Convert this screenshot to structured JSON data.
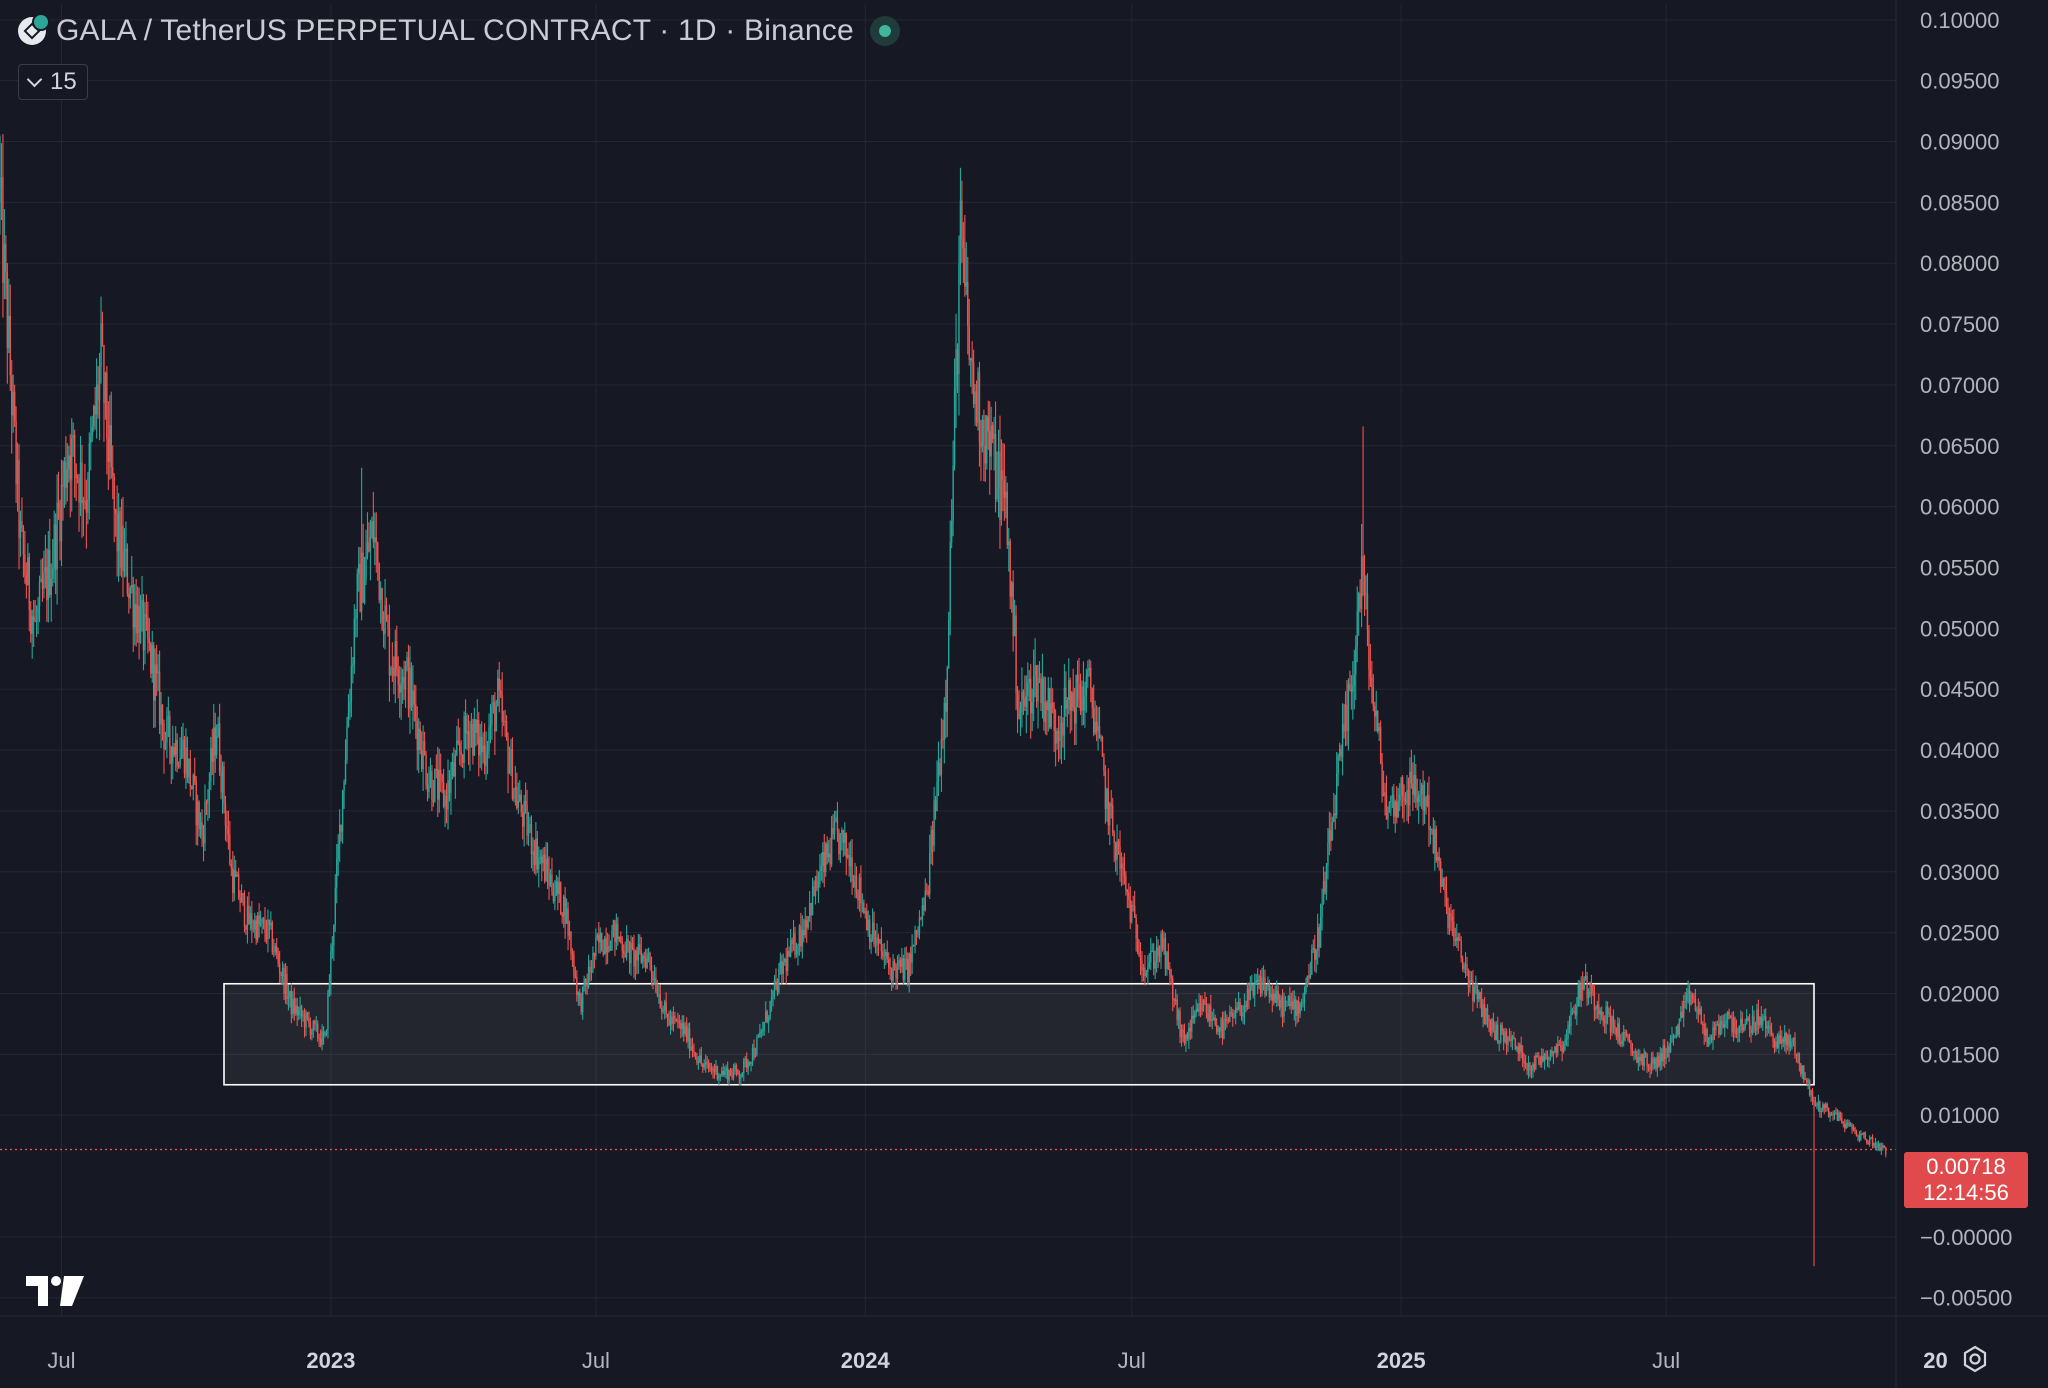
{
  "header": {
    "title": "GALA / TetherUS PERPETUAL CONTRACT · 1D · Binance",
    "indicator_count": "15"
  },
  "price_tag": {
    "price": "0.00718",
    "countdown": "12:14:56"
  },
  "colors": {
    "up": "#26a69a",
    "down": "#ef5350",
    "background": "#161823",
    "grid": "#242733",
    "zone": "#ffffff",
    "last_price": "#ef5350"
  },
  "icons": {
    "symbol": "gala-token-icon",
    "logo": "tradingview-logo-icon",
    "settings": "settings-gear-icon",
    "collapse": "chevron-down-icon"
  },
  "chart_data": {
    "type": "candlestick",
    "title": "GALA / TetherUS PERPETUAL CONTRACT · 1D · Binance",
    "timeframe": "1D",
    "exchange": "Binance",
    "xlim": [
      "2022-05-20",
      "2025-12-05"
    ],
    "ylim": [
      -0.0065,
      0.1013
    ],
    "y_ticks": [
      "0.10000",
      "0.09500",
      "0.09000",
      "0.08500",
      "0.08000",
      "0.07500",
      "0.07000",
      "0.06500",
      "0.06000",
      "0.05500",
      "0.05000",
      "0.04500",
      "0.04000",
      "0.03500",
      "0.03000",
      "0.02500",
      "0.02000",
      "0.01500",
      "0.01000",
      "−0.00000",
      "−0.00500"
    ],
    "x_ticks": [
      {
        "label": "Jul",
        "date": "2022-07-01",
        "bold": false
      },
      {
        "label": "2023",
        "date": "2023-01-01",
        "bold": true
      },
      {
        "label": "Jul",
        "date": "2023-07-01",
        "bold": false
      },
      {
        "label": "2024",
        "date": "2024-01-01",
        "bold": true
      },
      {
        "label": "Jul",
        "date": "2024-07-01",
        "bold": false
      },
      {
        "label": "2025",
        "date": "2025-01-01",
        "bold": true
      },
      {
        "label": "Jul",
        "date": "2025-07-01",
        "bold": false
      },
      {
        "label": "20",
        "date": "2026-01-01",
        "bold": true
      }
    ],
    "last_price": 0.00718,
    "support_zone": {
      "from": "2022-10-20",
      "to": "2025-10-10",
      "low": 0.0125,
      "high": 0.0208
    },
    "price_path": [
      [
        "2022-05-20",
        0.085
      ],
      [
        "2022-06-03",
        0.057
      ],
      [
        "2022-06-13",
        0.05
      ],
      [
        "2022-06-25",
        0.056
      ],
      [
        "2022-07-06",
        0.065
      ],
      [
        "2022-07-18",
        0.061
      ],
      [
        "2022-07-28",
        0.072
      ],
      [
        "2022-08-07",
        0.058
      ],
      [
        "2022-08-20",
        0.052
      ],
      [
        "2022-09-01",
        0.047
      ],
      [
        "2022-09-10",
        0.041
      ],
      [
        "2022-09-23",
        0.04
      ],
      [
        "2022-10-05",
        0.033
      ],
      [
        "2022-10-15",
        0.042
      ],
      [
        "2022-10-25",
        0.03
      ],
      [
        "2022-11-05",
        0.026
      ],
      [
        "2022-11-20",
        0.025
      ],
      [
        "2022-12-05",
        0.019
      ],
      [
        "2022-12-28",
        0.016
      ],
      [
        "2023-01-08",
        0.035
      ],
      [
        "2023-01-18",
        0.052
      ],
      [
        "2023-01-30",
        0.058
      ],
      [
        "2023-02-10",
        0.048
      ],
      [
        "2023-02-22",
        0.046
      ],
      [
        "2023-03-08",
        0.038
      ],
      [
        "2023-03-20",
        0.036
      ],
      [
        "2023-04-05",
        0.042
      ],
      [
        "2023-04-15",
        0.04
      ],
      [
        "2023-04-25",
        0.044
      ],
      [
        "2023-05-08",
        0.036
      ],
      [
        "2023-05-20",
        0.032
      ],
      [
        "2023-06-01",
        0.029
      ],
      [
        "2023-06-10",
        0.027
      ],
      [
        "2023-06-20",
        0.019
      ],
      [
        "2023-07-02",
        0.024
      ],
      [
        "2023-07-14",
        0.025
      ],
      [
        "2023-07-26",
        0.023
      ],
      [
        "2023-08-06",
        0.023
      ],
      [
        "2023-08-18",
        0.018
      ],
      [
        "2023-08-30",
        0.017
      ],
      [
        "2023-09-12",
        0.014
      ],
      [
        "2023-09-25",
        0.0135
      ],
      [
        "2023-10-08",
        0.0135
      ],
      [
        "2023-10-20",
        0.016
      ],
      [
        "2023-11-05",
        0.022
      ],
      [
        "2023-11-18",
        0.025
      ],
      [
        "2023-12-02",
        0.03
      ],
      [
        "2023-12-12",
        0.033
      ],
      [
        "2023-12-22",
        0.031
      ],
      [
        "2024-01-05",
        0.025
      ],
      [
        "2024-01-18",
        0.022
      ],
      [
        "2024-01-30",
        0.022
      ],
      [
        "2024-02-12",
        0.028
      ],
      [
        "2024-02-25",
        0.045
      ],
      [
        "2024-03-06",
        0.082
      ],
      [
        "2024-03-14",
        0.07
      ],
      [
        "2024-03-26",
        0.065
      ],
      [
        "2024-04-06",
        0.06
      ],
      [
        "2024-04-15",
        0.043
      ],
      [
        "2024-04-27",
        0.046
      ],
      [
        "2024-05-10",
        0.042
      ],
      [
        "2024-05-20",
        0.044
      ],
      [
        "2024-06-03",
        0.045
      ],
      [
        "2024-06-15",
        0.035
      ],
      [
        "2024-06-28",
        0.028
      ],
      [
        "2024-07-10",
        0.022
      ],
      [
        "2024-07-22",
        0.024
      ],
      [
        "2024-08-05",
        0.016
      ],
      [
        "2024-08-18",
        0.019
      ],
      [
        "2024-09-01",
        0.017
      ],
      [
        "2024-09-15",
        0.019
      ],
      [
        "2024-09-28",
        0.021
      ],
      [
        "2024-10-10",
        0.019
      ],
      [
        "2024-10-24",
        0.019
      ],
      [
        "2024-11-06",
        0.025
      ],
      [
        "2024-11-18",
        0.037
      ],
      [
        "2024-11-28",
        0.045
      ],
      [
        "2024-12-05",
        0.055
      ],
      [
        "2024-12-12",
        0.045
      ],
      [
        "2024-12-22",
        0.035
      ],
      [
        "2025-01-05",
        0.037
      ],
      [
        "2025-01-18",
        0.036
      ],
      [
        "2025-01-30",
        0.028
      ],
      [
        "2025-02-08",
        0.024
      ],
      [
        "2025-02-20",
        0.02
      ],
      [
        "2025-03-05",
        0.017
      ],
      [
        "2025-03-18",
        0.016
      ],
      [
        "2025-03-30",
        0.014
      ],
      [
        "2025-04-10",
        0.015
      ],
      [
        "2025-04-22",
        0.016
      ],
      [
        "2025-05-05",
        0.021
      ],
      [
        "2025-05-16",
        0.019
      ],
      [
        "2025-05-28",
        0.017
      ],
      [
        "2025-06-10",
        0.015
      ],
      [
        "2025-06-22",
        0.014
      ],
      [
        "2025-07-05",
        0.016
      ],
      [
        "2025-07-18",
        0.02
      ],
      [
        "2025-07-30",
        0.016
      ],
      [
        "2025-08-10",
        0.018
      ],
      [
        "2025-08-22",
        0.017
      ],
      [
        "2025-09-03",
        0.018
      ],
      [
        "2025-09-15",
        0.016
      ],
      [
        "2025-09-25",
        0.016
      ],
      [
        "2025-10-10",
        0.011
      ],
      [
        "2025-10-25",
        0.01
      ],
      [
        "2025-11-08",
        0.0085
      ],
      [
        "2025-11-28",
        0.00718
      ]
    ],
    "wick_extremes": [
      {
        "date": "2022-05-20",
        "high": 0.0905
      },
      {
        "date": "2022-07-30",
        "high": 0.0728
      },
      {
        "date": "2023-01-22",
        "high": 0.0632
      },
      {
        "date": "2024-03-07",
        "high": 0.0868
      },
      {
        "date": "2024-12-06",
        "high": 0.0666
      },
      {
        "date": "2025-10-10",
        "low": -0.0024
      }
    ]
  }
}
